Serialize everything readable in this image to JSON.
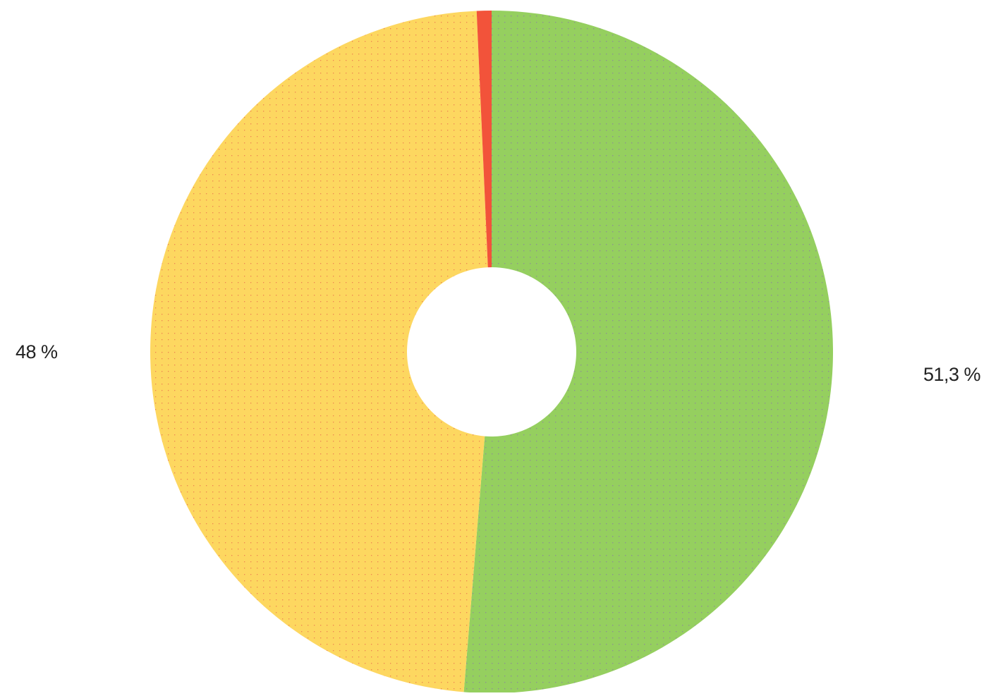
{
  "chart_data": {
    "type": "pie",
    "variant": "donut",
    "start_angle_deg": 0,
    "direction": "clockwise",
    "slices": [
      {
        "value": 51.3,
        "label": "51,3 %",
        "color": "#95cf5f",
        "dot_color": "#8a6fb0"
      },
      {
        "value": 48.0,
        "label": "48 %",
        "color": "#fdd760",
        "dot_color": "#e8604a"
      },
      {
        "value": 0.7,
        "label": "",
        "color": "#f2533a",
        "dot_color": "#f2533a"
      }
    ],
    "legend": "none",
    "title": ""
  }
}
